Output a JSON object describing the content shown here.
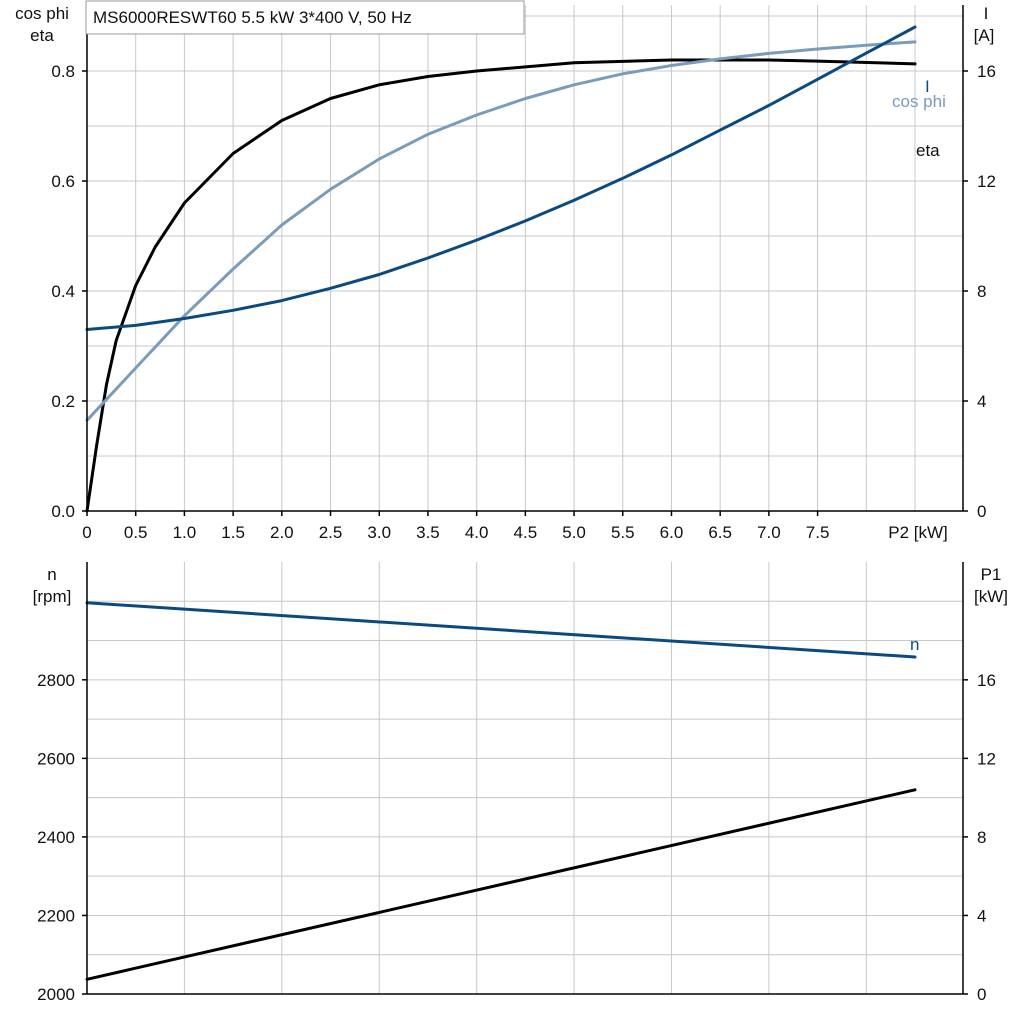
{
  "chart_title": "MS6000RESWT60   5.5 kW   3*400 V, 50 Hz",
  "colors": {
    "eta": "#000000",
    "cosphi": "#7a9cbc",
    "I": "#0b4a80",
    "n": "#0b4a80",
    "P1": "#000000",
    "grid": "#c8c8c8"
  },
  "chart_data": [
    {
      "type": "line",
      "title": "MS6000RESWT60   5.5 kW   3*400 V, 50 Hz",
      "x_label": "P2 [kW]",
      "xlim": [
        0,
        8.5
      ],
      "x_ticks": [
        "0",
        "0.5",
        "1.0",
        "1.5",
        "2.0",
        "2.5",
        "3.0",
        "3.5",
        "4.0",
        "4.5",
        "5.0",
        "5.5",
        "6.0",
        "6.5",
        "7.0",
        "7.5"
      ],
      "y_left_label": [
        "cos phi",
        "eta"
      ],
      "y_left_lim": [
        0,
        0.92
      ],
      "y_left_ticks": [
        "0.0",
        "0.2",
        "0.4",
        "0.6",
        "0.8"
      ],
      "y_right_label": [
        "I",
        "[A]"
      ],
      "y_right_lim": [
        0,
        18.4
      ],
      "y_right_ticks": [
        "0",
        "4",
        "8",
        "12",
        "16"
      ],
      "grid": true,
      "series": [
        {
          "name": "eta",
          "axis": "left",
          "x": [
            0,
            0.1,
            0.2,
            0.3,
            0.5,
            0.7,
            1.0,
            1.5,
            2.0,
            2.5,
            3.0,
            3.5,
            4.0,
            5.0,
            6.0,
            7.0,
            7.5,
            8.5
          ],
          "y": [
            0,
            0.12,
            0.23,
            0.31,
            0.41,
            0.48,
            0.56,
            0.65,
            0.71,
            0.75,
            0.775,
            0.79,
            0.8,
            0.815,
            0.82,
            0.82,
            0.818,
            0.813
          ]
        },
        {
          "name": "cos phi",
          "axis": "left",
          "x": [
            0,
            0.5,
            1.0,
            1.5,
            2.0,
            2.5,
            3.0,
            3.5,
            4.0,
            4.5,
            5.0,
            5.5,
            6.0,
            6.5,
            7.0,
            7.5,
            8.0,
            8.5
          ],
          "y": [
            0.165,
            0.26,
            0.355,
            0.44,
            0.52,
            0.585,
            0.64,
            0.685,
            0.72,
            0.75,
            0.775,
            0.795,
            0.81,
            0.822,
            0.832,
            0.84,
            0.847,
            0.853
          ]
        },
        {
          "name": "I",
          "axis": "right",
          "x": [
            0,
            0.5,
            1.0,
            1.5,
            2.0,
            2.5,
            3.0,
            3.5,
            4.0,
            4.5,
            5.0,
            5.5,
            6.0,
            6.5,
            7.0,
            7.5,
            8.0,
            8.5
          ],
          "y": [
            6.6,
            6.75,
            7.0,
            7.3,
            7.65,
            8.1,
            8.6,
            9.2,
            9.85,
            10.55,
            11.3,
            12.1,
            12.95,
            13.85,
            14.75,
            15.7,
            16.65,
            17.6
          ]
        }
      ]
    },
    {
      "type": "line",
      "xlim": [
        0,
        8.5
      ],
      "y_left_label": [
        "n",
        "[rpm]"
      ],
      "y_left_lim": [
        2000,
        3100
      ],
      "y_left_ticks": [
        "2000",
        "2200",
        "2400",
        "2600",
        "2800"
      ],
      "y_right_label": [
        "P1",
        "[kW]"
      ],
      "y_right_lim": [
        0,
        22
      ],
      "y_right_ticks": [
        "0",
        "4",
        "8",
        "12",
        "16"
      ],
      "grid": true,
      "series": [
        {
          "name": "n",
          "axis": "left",
          "x": [
            0,
            8.5
          ],
          "y": [
            2996,
            2858
          ]
        },
        {
          "axis": "right",
          "x": [
            0,
            8.5
          ],
          "y": [
            0.75,
            10.4
          ]
        }
      ]
    }
  ]
}
